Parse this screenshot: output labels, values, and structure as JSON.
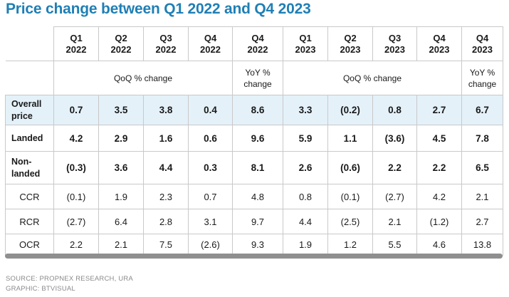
{
  "title": "Price change between Q1 2022 and Q4 2023",
  "columns": [
    {
      "quarter": "Q1",
      "year": "2022"
    },
    {
      "quarter": "Q2",
      "year": "2022"
    },
    {
      "quarter": "Q3",
      "year": "2022"
    },
    {
      "quarter": "Q4",
      "year": "2022"
    },
    {
      "quarter": "Q4",
      "year": "2022"
    },
    {
      "quarter": "Q1",
      "year": "2023"
    },
    {
      "quarter": "Q2",
      "year": "2023"
    },
    {
      "quarter": "Q3",
      "year": "2023"
    },
    {
      "quarter": "Q4",
      "year": "2023"
    },
    {
      "quarter": "Q4",
      "year": "2023"
    }
  ],
  "subheaders": {
    "qoq_2022": "QoQ % change",
    "yoy_2022": "YoY % change",
    "qoq_2023": "QoQ % change",
    "yoy_2023": "YoY % change"
  },
  "rows": [
    {
      "label": "Overall price",
      "values": [
        "0.7",
        "3.5",
        "3.8",
        "0.4",
        "8.6",
        "3.3",
        "(0.2)",
        "0.8",
        "2.7",
        "6.7"
      ]
    },
    {
      "label": "Landed",
      "values": [
        "4.2",
        "2.9",
        "1.6",
        "0.6",
        "9.6",
        "5.9",
        "1.1",
        "(3.6)",
        "4.5",
        "7.8"
      ]
    },
    {
      "label": "Non-landed",
      "values": [
        "(0.3)",
        "3.6",
        "4.4",
        "0.3",
        "8.1",
        "2.6",
        "(0.6)",
        "2.2",
        "2.2",
        "6.5"
      ]
    },
    {
      "label": "CCR",
      "values": [
        "(0.1)",
        "1.9",
        "2.3",
        "0.7",
        "4.8",
        "0.8",
        "(0.1)",
        "(2.7)",
        "4.2",
        "2.1"
      ]
    },
    {
      "label": "RCR",
      "values": [
        "(2.7)",
        "6.4",
        "2.8",
        "3.1",
        "9.7",
        "4.4",
        "(2.5)",
        "2.1",
        "(1.2)",
        "2.7"
      ]
    },
    {
      "label": "OCR",
      "values": [
        "2.2",
        "2.1",
        "7.5",
        "(2.6)",
        "9.3",
        "1.9",
        "1.2",
        "5.5",
        "4.6",
        "13.8"
      ]
    }
  ],
  "footer": {
    "source": "SOURCE: PROPNEX RESEARCH, URA",
    "graphic": "GRAPHIC: BTVISUAL"
  },
  "colors": {
    "title": "#1f7fb5",
    "highlight_row": "#e4f1f9",
    "scrollbar": "#8f8f8f"
  }
}
